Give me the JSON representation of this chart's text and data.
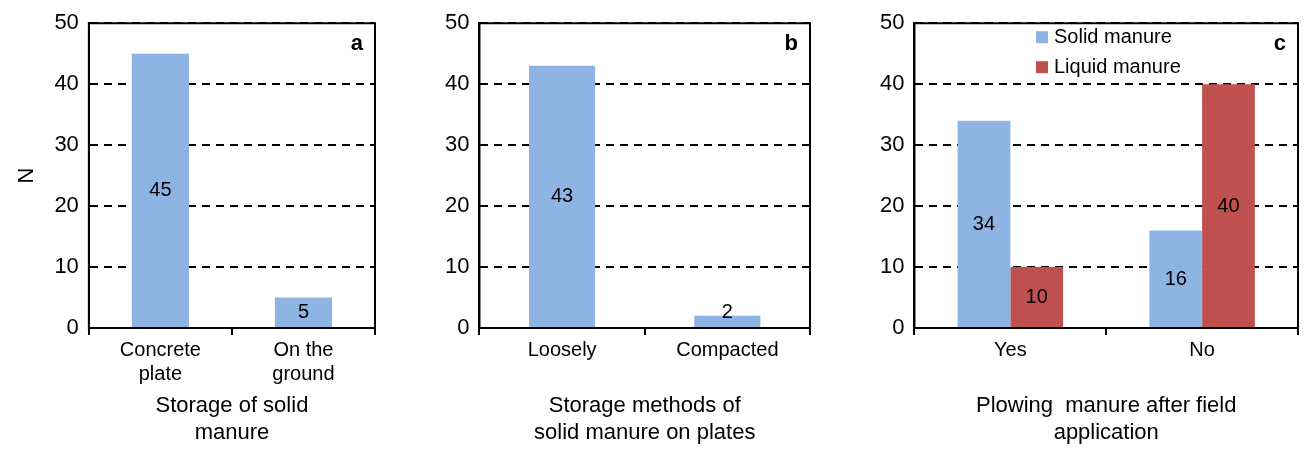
{
  "chart_data": [
    {
      "type": "bar",
      "categories": [
        "Concrete plate",
        "On the ground"
      ],
      "values": [
        45,
        5
      ],
      "color": "#8db4e2",
      "xlabel": "Storage of solid manure",
      "ylabel": "N",
      "ylim": [
        0,
        50
      ],
      "yticks": [
        0,
        10,
        20,
        30,
        40,
        50
      ],
      "grid": "y",
      "data_labels": true,
      "annotations": [
        "a"
      ]
    },
    {
      "type": "bar",
      "categories": [
        "Loosely",
        "Compacted"
      ],
      "values": [
        43,
        2
      ],
      "color": "#8db4e2",
      "xlabel": "Storage methods of solid manure on plates",
      "ylim": [
        0,
        50
      ],
      "yticks": [
        0,
        10,
        20,
        30,
        40,
        50
      ],
      "grid": "y",
      "data_labels": true,
      "annotations": [
        "b"
      ]
    },
    {
      "type": "bar",
      "categories": [
        "Yes",
        "No"
      ],
      "series": [
        {
          "name": "Solid manure",
          "color": "#8db4e2",
          "values": [
            34,
            16
          ]
        },
        {
          "name": "Liquid manure",
          "color": "#c0504d",
          "values": [
            10,
            40
          ]
        }
      ],
      "xlabel": "Plowing  manure after field application",
      "ylim": [
        0,
        50
      ],
      "yticks": [
        0,
        10,
        20,
        30,
        40,
        50
      ],
      "grid": "y",
      "legend": "top right",
      "data_labels": true,
      "annotations": [
        "c"
      ]
    }
  ]
}
